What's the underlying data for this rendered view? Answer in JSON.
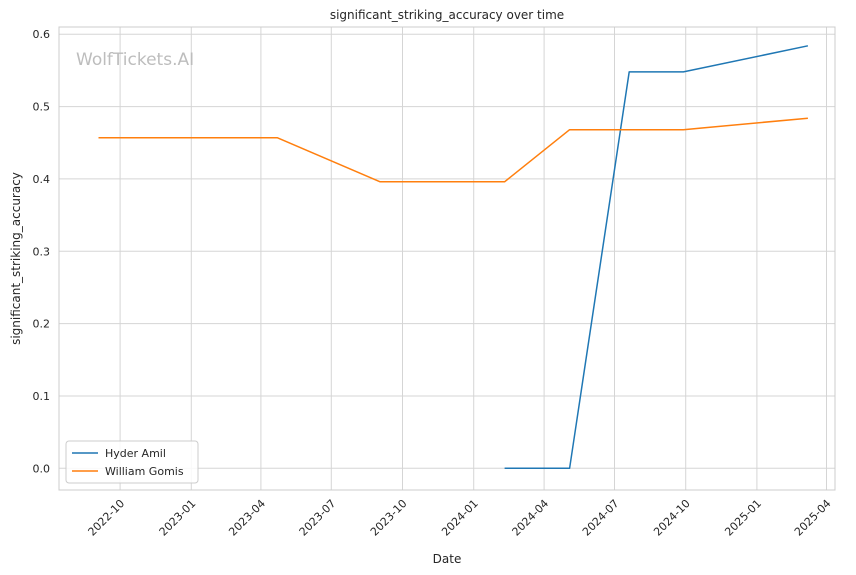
{
  "watermark": "WolfTickets.AI",
  "colors": {
    "series_1": "#1f77b4",
    "series_2": "#ff7f0e",
    "grid": "#d5d5d5",
    "frame": "#cccccc"
  },
  "chart_data": {
    "type": "line",
    "title": "significant_striking_accuracy over time",
    "xlabel": "Date",
    "ylabel": "significant_striking_accuracy",
    "xlim": [
      "2022-07-14",
      "2025-04-12"
    ],
    "ylim": [
      -0.03,
      0.61
    ],
    "grid": true,
    "legend_position": "lower-left",
    "x_ticks": [
      {
        "date": "2022-10-01",
        "label": "2022-10"
      },
      {
        "date": "2023-01-01",
        "label": "2023-01"
      },
      {
        "date": "2023-04-01",
        "label": "2023-04"
      },
      {
        "date": "2023-07-01",
        "label": "2023-07"
      },
      {
        "date": "2023-10-01",
        "label": "2023-10"
      },
      {
        "date": "2024-01-01",
        "label": "2024-01"
      },
      {
        "date": "2024-04-01",
        "label": "2024-04"
      },
      {
        "date": "2024-07-01",
        "label": "2024-07"
      },
      {
        "date": "2024-10-01",
        "label": "2024-10"
      },
      {
        "date": "2025-01-01",
        "label": "2025-01"
      },
      {
        "date": "2025-04-01",
        "label": "2025-04"
      }
    ],
    "y_ticks": [
      {
        "value": 0.0,
        "label": "0.0"
      },
      {
        "value": 0.1,
        "label": "0.1"
      },
      {
        "value": 0.2,
        "label": "0.2"
      },
      {
        "value": 0.3,
        "label": "0.3"
      },
      {
        "value": 0.4,
        "label": "0.4"
      },
      {
        "value": 0.5,
        "label": "0.5"
      },
      {
        "value": 0.6,
        "label": "0.6"
      }
    ],
    "series": [
      {
        "name": "Hyder Amil",
        "color": "#1f77b4",
        "points": [
          {
            "x": "2024-02-10",
            "y": 0.0
          },
          {
            "x": "2024-05-04",
            "y": 0.0
          },
          {
            "x": "2024-07-20",
            "y": 0.548
          },
          {
            "x": "2024-09-28",
            "y": 0.548
          },
          {
            "x": "2025-03-08",
            "y": 0.584
          }
        ]
      },
      {
        "name": "William Gomis",
        "color": "#ff7f0e",
        "points": [
          {
            "x": "2022-09-03",
            "y": 0.457
          },
          {
            "x": "2023-04-22",
            "y": 0.457
          },
          {
            "x": "2023-09-02",
            "y": 0.396
          },
          {
            "x": "2024-02-10",
            "y": 0.396
          },
          {
            "x": "2024-05-04",
            "y": 0.468
          },
          {
            "x": "2024-09-28",
            "y": 0.468
          },
          {
            "x": "2025-03-08",
            "y": 0.484
          }
        ]
      }
    ]
  }
}
